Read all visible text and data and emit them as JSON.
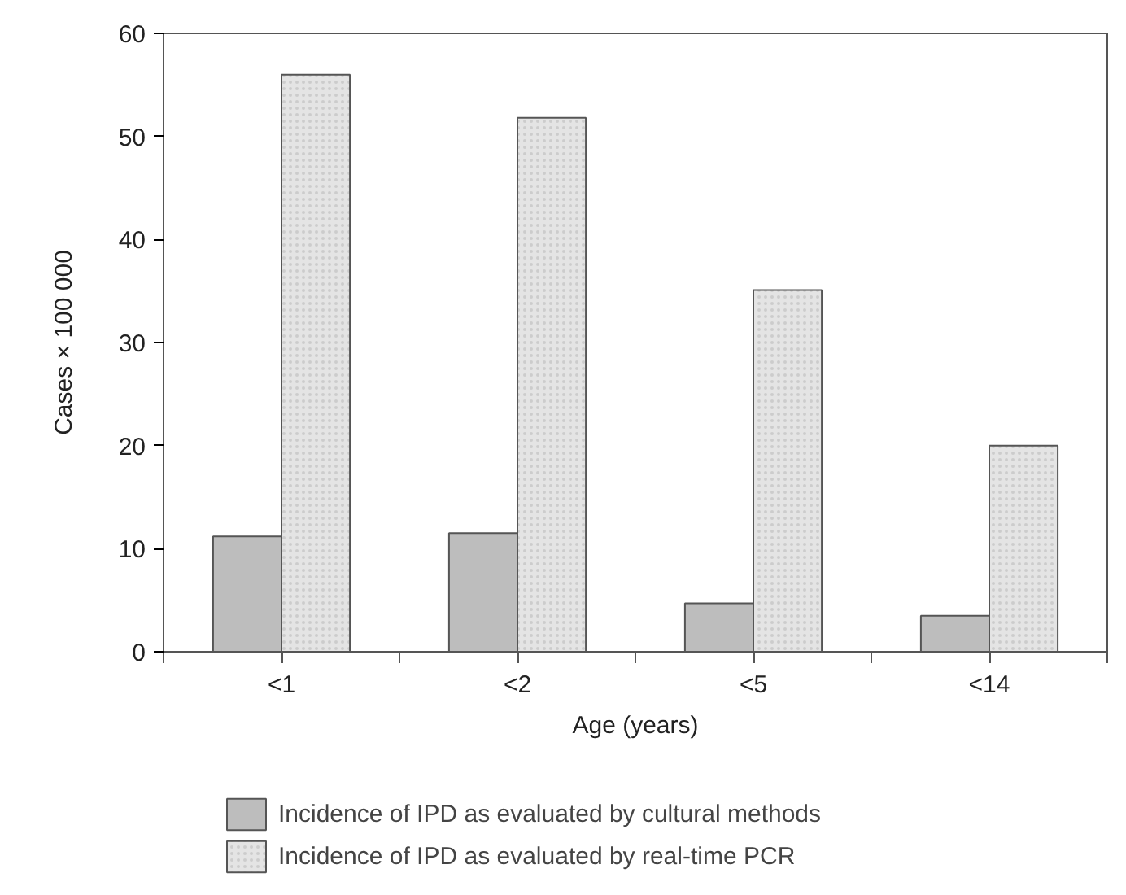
{
  "chart_data": {
    "type": "bar",
    "xlabel": "Age (years)",
    "ylabel": "Cases × 100 000",
    "categories": [
      "<1",
      "<2",
      "<5",
      "<14"
    ],
    "series": [
      {
        "name": "Incidence of IPD as evaluated by cultural methods",
        "color": "#bdbdbd",
        "values": [
          11.2,
          11.5,
          4.7,
          3.5
        ]
      },
      {
        "name": "Incidence of IPD as evaluated by real-time PCR",
        "color": "#e4e4e4",
        "values": [
          56,
          51.8,
          35.1,
          20
        ]
      }
    ],
    "ylim": [
      0,
      60
    ],
    "yticks": [
      0,
      10,
      20,
      30,
      40,
      50,
      60
    ],
    "grid": false,
    "legend": "bottom"
  }
}
